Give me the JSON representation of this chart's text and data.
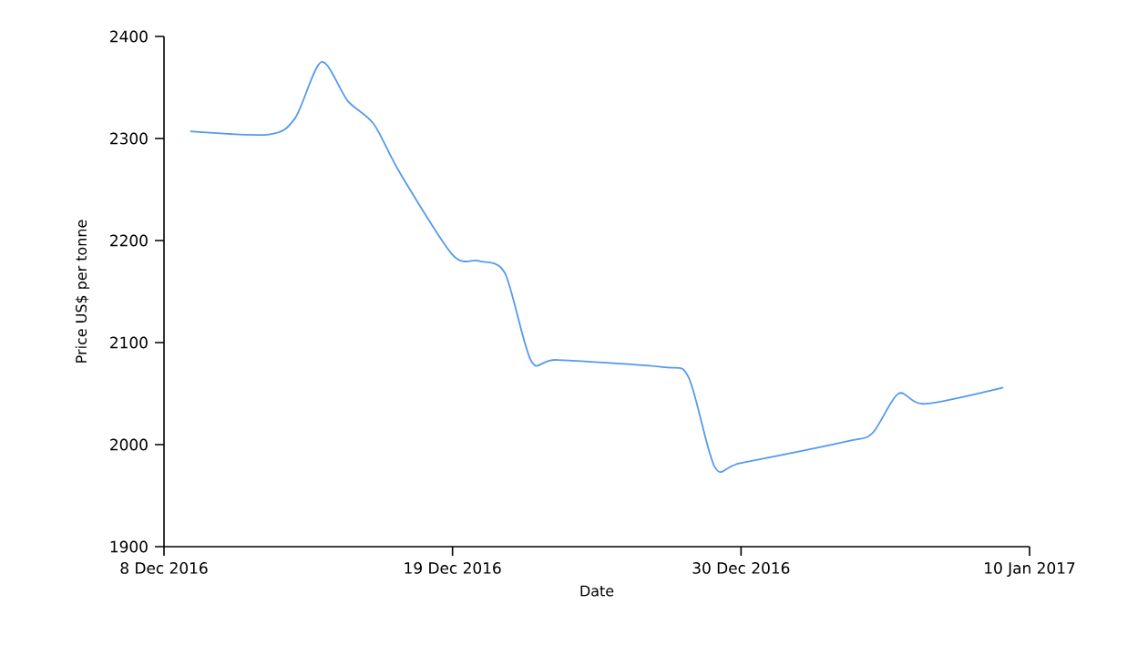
{
  "chart_data": {
    "type": "line",
    "xlabel": "Date",
    "ylabel": "Price US$ per tonne",
    "x": [
      "2016-12-09",
      "2016-12-12",
      "2016-12-13",
      "2016-12-14",
      "2016-12-15",
      "2016-12-16",
      "2016-12-17",
      "2016-12-19",
      "2016-12-20",
      "2016-12-21",
      "2016-12-22",
      "2016-12-23",
      "2016-12-27",
      "2016-12-28",
      "2016-12-29",
      "2016-12-30",
      "2017-01-03",
      "2017-01-04",
      "2017-01-05",
      "2017-01-06",
      "2017-01-09"
    ],
    "series": [
      {
        "color": "#5599ee",
        "values": [
          2307,
          2304,
          2320,
          2375,
          2337,
          2314,
          2266,
          2186,
          2180,
          2168,
          2082,
          2083,
          2076,
          2066,
          1978,
          1982,
          2003,
          2011,
          2050,
          2040,
          2056
        ]
      }
    ],
    "xlim": [
      "2016-12-08",
      "2017-01-10"
    ],
    "xticks": [
      {
        "value": "2016-12-08",
        "label": "8 Dec 2016"
      },
      {
        "value": "2016-12-19",
        "label": "19 Dec 2016"
      },
      {
        "value": "2016-12-30",
        "label": "30 Dec 2016"
      },
      {
        "value": "2017-01-10",
        "label": "10 Jan 2017"
      }
    ],
    "ylim": [
      1900,
      2400
    ],
    "yticks": [
      1900,
      2000,
      2100,
      2200,
      2300,
      2400
    ],
    "marker": "none",
    "line_style": "solid"
  }
}
